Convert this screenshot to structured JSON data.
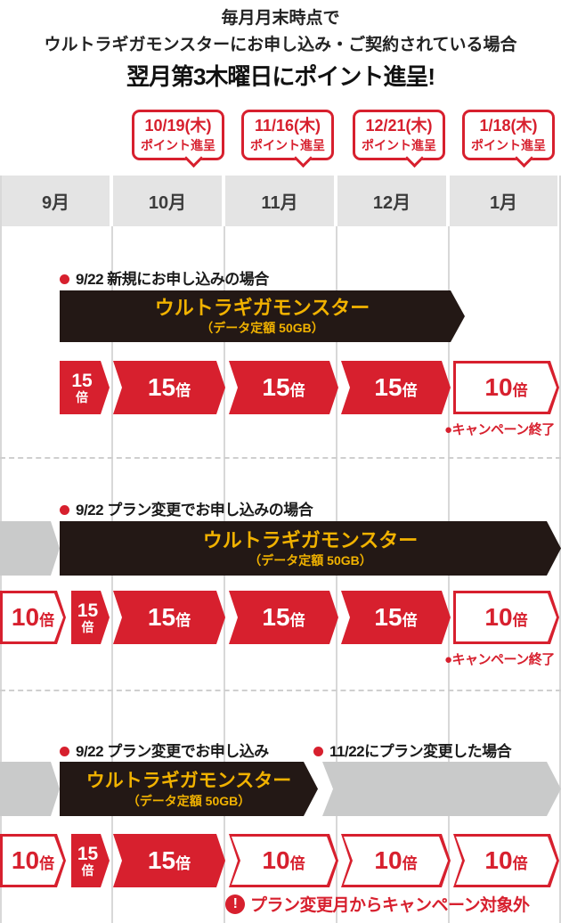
{
  "colors": {
    "accent_red": "#d7202e",
    "gold": "#f1b200",
    "banner_black": "#231815",
    "gray_arrow": "#c9caca",
    "month_header_bg": "#e4e4e4"
  },
  "header": {
    "line1": "毎月月末時点で",
    "line2": "ウルトラギガモンスターにお申し込み・ご契約されている場合",
    "line3": "翌月第3木曜日にポイント進呈!"
  },
  "point_callouts": [
    {
      "date": "10/19(木)",
      "label": "ポイント進呈"
    },
    {
      "date": "11/16(木)",
      "label": "ポイント進呈"
    },
    {
      "date": "12/21(木)",
      "label": "ポイント進呈"
    },
    {
      "date": "1/18(木)",
      "label": "ポイント進呈"
    }
  ],
  "months": [
    "9月",
    "10月",
    "11月",
    "12月",
    "1月"
  ],
  "plan": {
    "title": "ウルトラギガモンスター",
    "subtitle": "（データ定額 50GB）"
  },
  "sections": [
    {
      "bullet": "9/22 新規にお申し込みの場合",
      "arrows": [
        {
          "num": "15",
          "unit": "倍"
        },
        {
          "num": "15",
          "unit": "倍"
        },
        {
          "num": "15",
          "unit": "倍"
        },
        {
          "num": "15",
          "unit": "倍"
        },
        {
          "num": "10",
          "unit": "倍"
        }
      ],
      "note": "●キャンペーン終了"
    },
    {
      "bullet": "9/22 プラン変更でお申し込みの場合",
      "arrows": [
        {
          "num": "10",
          "unit": "倍"
        },
        {
          "num": "15",
          "unit": "倍"
        },
        {
          "num": "15",
          "unit": "倍"
        },
        {
          "num": "15",
          "unit": "倍"
        },
        {
          "num": "15",
          "unit": "倍"
        },
        {
          "num": "10",
          "unit": "倍"
        }
      ],
      "note": "●キャンペーン終了"
    },
    {
      "bullet": "9/22 プラン変更でお申し込み",
      "bullet2": "11/22にプラン変更した場合",
      "arrows": [
        {
          "num": "10",
          "unit": "倍"
        },
        {
          "num": "15",
          "unit": "倍"
        },
        {
          "num": "15",
          "unit": "倍"
        },
        {
          "num": "10",
          "unit": "倍"
        },
        {
          "num": "10",
          "unit": "倍"
        },
        {
          "num": "10",
          "unit": "倍"
        }
      ],
      "note_icon": "!",
      "note": "プラン変更月からキャンペーン対象外"
    }
  ]
}
